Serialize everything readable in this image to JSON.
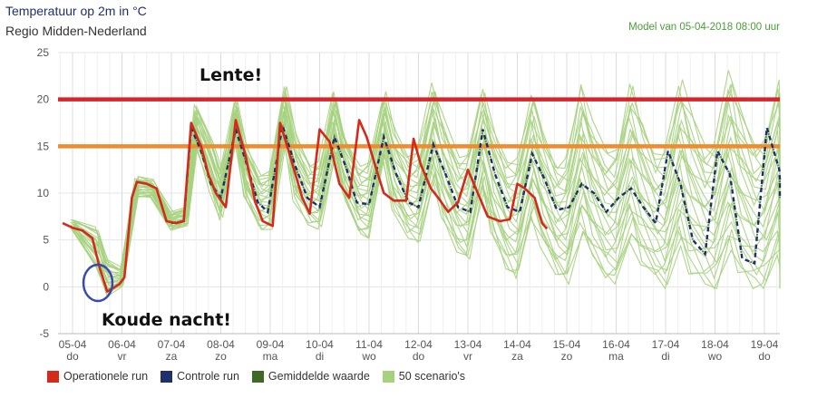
{
  "header": {
    "title": "Temperatuur op 2m in °C",
    "subtitle": "Regio Midden-Nederland",
    "model": "Model van 05-04-2018 08:00 uur"
  },
  "annotations": {
    "spring": "Lente!",
    "cold": "Koude nacht!"
  },
  "colors": {
    "operational": "#d42a1a",
    "control": "#1f2f6b",
    "mean": "#3f6a25",
    "scenarios": "#a6d27f",
    "threshold20": "#d9232b",
    "threshold15": "#f28a2e",
    "circle": "#3a49b0"
  },
  "legend": [
    {
      "label": "Operationele run",
      "color": "#d42a1a"
    },
    {
      "label": "Controle run",
      "color": "#1f2f6b"
    },
    {
      "label": "Gemiddelde waarde",
      "color": "#3f6a25"
    },
    {
      "label": "50 scenario's",
      "color": "#a6d27f"
    }
  ],
  "chart_data": {
    "type": "line",
    "title": "Temperatuur op 2m in °C",
    "subtitle": "Regio Midden-Nederland",
    "ylim": [
      -5,
      25
    ],
    "yticks": [
      -5,
      0,
      5,
      10,
      15,
      20,
      25
    ],
    "xlim": [
      0,
      15
    ],
    "xticks": [
      {
        "date": "05-04",
        "day": "do"
      },
      {
        "date": "06-04",
        "day": "vr"
      },
      {
        "date": "07-04",
        "day": "za"
      },
      {
        "date": "08-04",
        "day": "zo"
      },
      {
        "date": "09-04",
        "day": "ma"
      },
      {
        "date": "10-04",
        "day": "di"
      },
      {
        "date": "11-04",
        "day": "wo"
      },
      {
        "date": "12-04",
        "day": "do"
      },
      {
        "date": "13-04",
        "day": "vr"
      },
      {
        "date": "14-04",
        "day": "za"
      },
      {
        "date": "15-04",
        "day": "zo"
      },
      {
        "date": "16-04",
        "day": "ma"
      },
      {
        "date": "17-04",
        "day": "di"
      },
      {
        "date": "18-04",
        "day": "wo"
      },
      {
        "date": "19-04",
        "day": "do"
      }
    ],
    "grid": true,
    "thresholds": [
      20,
      15
    ],
    "series": [
      {
        "name": "Operationele run",
        "x": [
          -0.2,
          0,
          0.2,
          0.4,
          0.55,
          0.7,
          0.8,
          0.95,
          1.05,
          1.2,
          1.3,
          1.5,
          1.7,
          1.9,
          2.1,
          2.25,
          2.4,
          2.6,
          2.75,
          2.9,
          3.1,
          3.3,
          3.5,
          3.7,
          3.85,
          4.05,
          4.2,
          4.4,
          4.65,
          4.8,
          5,
          5.2,
          5.4,
          5.6,
          5.8,
          5.95,
          6.15,
          6.3,
          6.5,
          6.75,
          6.9,
          7.05,
          7.25,
          7.4,
          7.6,
          7.8,
          8,
          8.2,
          8.4,
          8.65,
          8.85,
          9,
          9.15,
          9.35,
          9.5,
          9.6
        ],
        "values": [
          6.8,
          6.3,
          6.0,
          5.2,
          2.0,
          -0.5,
          -0.2,
          0.3,
          1.0,
          9.5,
          11.2,
          11.0,
          10.5,
          7.0,
          6.8,
          7.0,
          17.5,
          15.0,
          12.0,
          10.0,
          8.5,
          17.8,
          14.0,
          9.0,
          7.0,
          6.5,
          17.5,
          14.0,
          9.5,
          7.8,
          16.8,
          15.5,
          11.0,
          9.5,
          17.8,
          16.0,
          12.5,
          10.0,
          9.2,
          9.2,
          15.8,
          13.0,
          10.5,
          9.5,
          8.0,
          9.0,
          12.5,
          10.0,
          7.5,
          7.0,
          7.2,
          11.0,
          10.5,
          9.5,
          6.8,
          6.2
        ]
      },
      {
        "name": "Controle run",
        "x": [
          2.0,
          2.25,
          2.4,
          2.6,
          2.8,
          3.0,
          3.3,
          3.5,
          3.75,
          3.95,
          4.25,
          4.5,
          4.75,
          5.0,
          5.3,
          5.55,
          5.75,
          6.0,
          6.3,
          6.55,
          6.8,
          7.0,
          7.3,
          7.55,
          7.8,
          8.05,
          8.3,
          8.55,
          8.8,
          9.05,
          9.3,
          9.55,
          9.8,
          10.05,
          10.3,
          10.55,
          10.8,
          11.05,
          11.3,
          11.55,
          11.8,
          12.05,
          12.3,
          12.55,
          12.8,
          13.05,
          13.3,
          13.55,
          13.8,
          14.05,
          14.3,
          14.55,
          14.8
        ],
        "values": [
          6.8,
          7.0,
          17.0,
          14.5,
          11.0,
          9.5,
          16.8,
          13.5,
          9.0,
          8.0,
          17.2,
          13.0,
          9.5,
          8.5,
          16.0,
          12.5,
          9.0,
          8.8,
          16.0,
          12.0,
          9.0,
          8.5,
          15.2,
          12.0,
          8.5,
          8.0,
          16.8,
          12.0,
          8.5,
          8.0,
          14.2,
          11.5,
          8.2,
          8.5,
          11.0,
          10.0,
          8.0,
          9.5,
          10.5,
          8.5,
          6.8,
          14.5,
          11.0,
          5.0,
          3.5,
          14.5,
          12.0,
          3.0,
          2.5,
          17.0,
          12.5,
          11.5,
          9.5
        ]
      },
      {
        "name": "50 scenario's",
        "x": [
          0,
          0.5,
          0.7,
          1.0,
          1.3,
          1.6,
          2.0,
          2.3,
          2.5,
          2.8,
          3.0,
          3.3,
          3.5,
          3.8,
          4.0,
          4.3,
          4.5,
          4.8,
          5.0,
          5.3,
          5.5,
          5.8,
          6.0,
          6.3,
          6.5,
          6.8,
          7.0,
          7.3,
          7.5,
          7.8,
          8.0,
          8.3,
          8.5,
          8.8,
          9.0,
          9.3,
          9.5,
          9.8,
          10.0,
          10.3,
          10.5,
          10.8,
          11.0,
          11.3,
          11.5,
          11.8,
          12.0,
          12.3,
          12.5,
          12.8,
          13.0,
          13.3,
          13.5,
          13.8,
          14.0,
          14.3,
          14.5,
          14.8,
          15.0
        ],
        "min": [
          6.0,
          1.5,
          -1.0,
          0.0,
          9.5,
          9.5,
          6.0,
          6.5,
          15.0,
          10.0,
          7.0,
          16.0,
          9.0,
          6.0,
          6.0,
          15.5,
          9.0,
          6.5,
          6.0,
          14.0,
          9.0,
          5.5,
          5.0,
          13.5,
          8.0,
          5.0,
          4.5,
          11.0,
          7.0,
          3.5,
          2.5,
          10.0,
          5.0,
          1.5,
          0.5,
          7.0,
          4.0,
          1.0,
          0.0,
          5.5,
          3.0,
          0.5,
          0.0,
          4.5,
          2.0,
          0.5,
          -0.5,
          4.0,
          1.0,
          0.0,
          -0.5,
          3.5,
          1.0,
          -0.5,
          -0.5,
          3.0,
          0.5,
          -0.5,
          -0.5
        ],
        "max": [
          7.2,
          6.5,
          3.0,
          2.0,
          11.8,
          11.5,
          8.0,
          8.5,
          19.5,
          16.0,
          12.5,
          20.0,
          15.5,
          12.0,
          12.5,
          21.5,
          16.5,
          13.0,
          13.5,
          21.0,
          16.5,
          13.0,
          13.5,
          21.0,
          17.0,
          14.0,
          14.5,
          22.0,
          18.0,
          14.0,
          14.5,
          21.5,
          17.5,
          13.5,
          14.0,
          21.0,
          17.0,
          13.0,
          14.0,
          22.0,
          18.0,
          14.5,
          15.0,
          22.0,
          18.5,
          14.5,
          15.0,
          22.5,
          19.0,
          15.0,
          15.5,
          23.5,
          19.5,
          15.5,
          16.0,
          22.5,
          19.5,
          16.0,
          15.5
        ]
      }
    ],
    "annotations": [
      "Lente!",
      "Koude nacht!"
    ]
  }
}
